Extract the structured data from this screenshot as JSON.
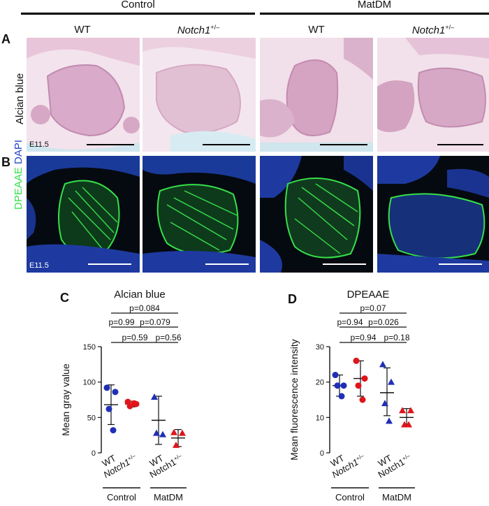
{
  "groups": {
    "control": "Control",
    "matdm": "MatDM"
  },
  "columns": {
    "wt": "WT",
    "notch_gene": "Notch1",
    "notch_sup": "+/–"
  },
  "panels": {
    "a": {
      "letter": "A",
      "row_label": "Alcian blue",
      "stage": "E11.5"
    },
    "b": {
      "letter": "B",
      "row_label_1": "DPEAAE",
      "row_label_2": "DAPI",
      "stage": "E11.5"
    },
    "c": {
      "letter": "C"
    },
    "d": {
      "letter": "D"
    }
  },
  "colors": {
    "wt_marker": "#1f2fb5",
    "notch_marker": "#e0141b",
    "dpeaae": "#35e04a",
    "dapi": "#2244c8",
    "alcian_bg": "#efdde8"
  },
  "chart_data": [
    {
      "type": "scatter",
      "title": "Alcian blue",
      "ylabel": "Mean gray value",
      "ylim": [
        0,
        150
      ],
      "yticks": [
        0,
        50,
        100,
        150
      ],
      "categories": [
        "WT",
        "Notch1+/–",
        "WT",
        "Notch1+/–"
      ],
      "category_groups": [
        "Control",
        "Control",
        "MatDM",
        "MatDM"
      ],
      "series": [
        {
          "group": "Control",
          "genotype": "WT",
          "marker": "circle",
          "color": "#1f2fb5",
          "values": [
            92,
            86,
            62,
            32
          ],
          "mean": 68,
          "sd_low": 40,
          "sd_high": 96
        },
        {
          "group": "Control",
          "genotype": "Notch1+/–",
          "marker": "circle",
          "color": "#e0141b",
          "values": [
            72,
            69,
            66,
            70
          ],
          "mean": 69,
          "sd_low": 65,
          "sd_high": 73
        },
        {
          "group": "MatDM",
          "genotype": "WT",
          "marker": "triangle",
          "color": "#1f2fb5",
          "values": [
            79,
            26,
            28
          ],
          "mean": 46,
          "sd_low": 12,
          "sd_high": 80
        },
        {
          "group": "MatDM",
          "genotype": "Notch1+/–",
          "marker": "triangle",
          "color": "#e0141b",
          "values": [
            29,
            28,
            11
          ],
          "mean": 21,
          "sd_low": 9,
          "sd_high": 33
        }
      ],
      "comparisons": [
        {
          "label": "p=0.084",
          "from": 0,
          "to": 3
        },
        {
          "label": "p=0.99",
          "from": 0,
          "to": 1
        },
        {
          "label": "p=0.079",
          "from": 1,
          "to": 3
        },
        {
          "label": "p=0.59",
          "from": 0,
          "to": 2
        },
        {
          "label": "p=0.56",
          "from": 2,
          "to": 3
        }
      ]
    },
    {
      "type": "scatter",
      "title": "DPEAAE",
      "ylabel": "Mean fluorescence intensity",
      "ylim": [
        0,
        30
      ],
      "yticks": [
        0,
        10,
        20,
        30
      ],
      "categories": [
        "WT",
        "Notch1+/–",
        "WT",
        "Notch1+/–"
      ],
      "category_groups": [
        "Control",
        "Control",
        "MatDM",
        "MatDM"
      ],
      "series": [
        {
          "group": "Control",
          "genotype": "WT",
          "marker": "circle",
          "color": "#1f2fb5",
          "values": [
            22,
            19,
            19,
            16
          ],
          "mean": 19,
          "sd_low": 16,
          "sd_high": 22
        },
        {
          "group": "Control",
          "genotype": "Notch1+/–",
          "marker": "circle",
          "color": "#e0141b",
          "values": [
            26,
            21,
            19,
            15
          ],
          "mean": 21,
          "sd_low": 16,
          "sd_high": 26
        },
        {
          "group": "MatDM",
          "genotype": "WT",
          "marker": "triangle",
          "color": "#1f2fb5",
          "values": [
            25,
            20,
            14,
            9
          ],
          "mean": 17,
          "sd_low": 10.5,
          "sd_high": 24
        },
        {
          "group": "MatDM",
          "genotype": "Notch1+/–",
          "marker": "triangle",
          "color": "#e0141b",
          "values": [
            12,
            12,
            8,
            8
          ],
          "mean": 10,
          "sd_low": 7.5,
          "sd_high": 12.5
        }
      ],
      "comparisons": [
        {
          "label": "p=0.07",
          "from": 0,
          "to": 3
        },
        {
          "label": "p=0.94",
          "from": 0,
          "to": 1
        },
        {
          "label": "p=0.026",
          "from": 1,
          "to": 3
        },
        {
          "label": "p=0.94",
          "from": 0,
          "to": 2
        },
        {
          "label": "p=0.18",
          "from": 2,
          "to": 3
        }
      ]
    }
  ]
}
